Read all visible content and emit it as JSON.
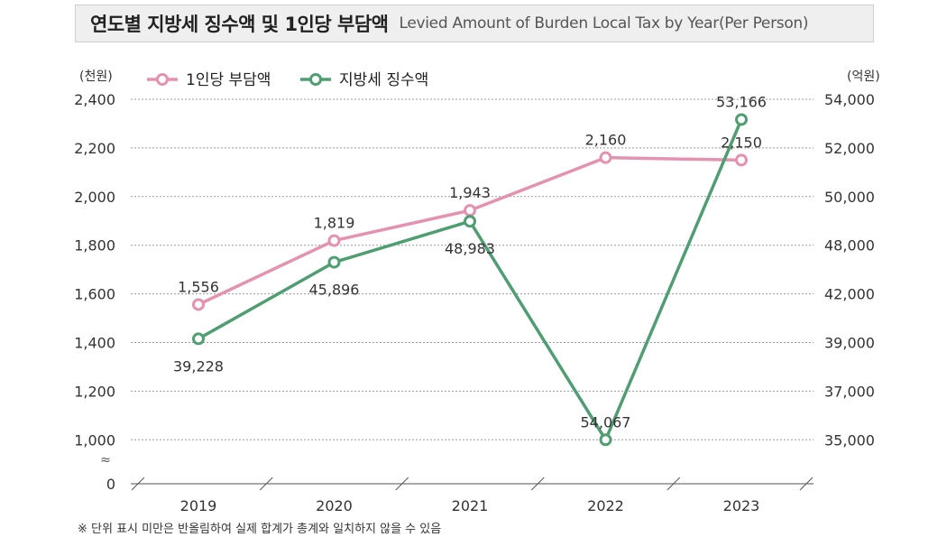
{
  "header": {
    "title_ko": "연도별 지방세 징수액 및 1인당 부담액",
    "title_en": "Levied Amount of Burden Local Tax by Year(Per Person)"
  },
  "note": "※ 단위 표시 미만은 반올림하여 실제 합계가 총계와 일치하지 않을 수 있음",
  "chart_data": {
    "type": "line",
    "categories": [
      "2019",
      "2020",
      "2021",
      "2022",
      "2023"
    ],
    "y_left": {
      "unit_label": "(천원)",
      "ticks": [
        0,
        1000,
        1200,
        1400,
        1600,
        1800,
        2000,
        2200,
        2400
      ],
      "tick_labels": [
        "0",
        "1,000",
        "1,200",
        "1,400",
        "1,600",
        "1,800",
        "2,000",
        "2,200",
        "2,400"
      ],
      "range": [
        1000,
        2400
      ],
      "axis_break": true
    },
    "y_right": {
      "unit_label": "(억원)",
      "tick_labels": [
        "35,000",
        "37,000",
        "39,000",
        "42,000",
        "48,000",
        "50,000",
        "52,000",
        "54,000"
      ]
    },
    "series": [
      {
        "name": "1인당 부담액",
        "axis": "left",
        "color": "#e591b0",
        "values": [
          1556,
          1819,
          1943,
          2160,
          2150
        ],
        "labels": [
          "1,556",
          "1,819",
          "1,943",
          "2,160",
          "2,150"
        ]
      },
      {
        "name": "지방세 징수액",
        "axis": "right",
        "color": "#4f9e72",
        "values": [
          39228,
          45896,
          48983,
          54067,
          53166
        ],
        "labels": [
          "39,228",
          "45,896",
          "48,983",
          "54,067",
          "53,166"
        ]
      }
    ],
    "grid": true,
    "legend_position": "top-left"
  }
}
